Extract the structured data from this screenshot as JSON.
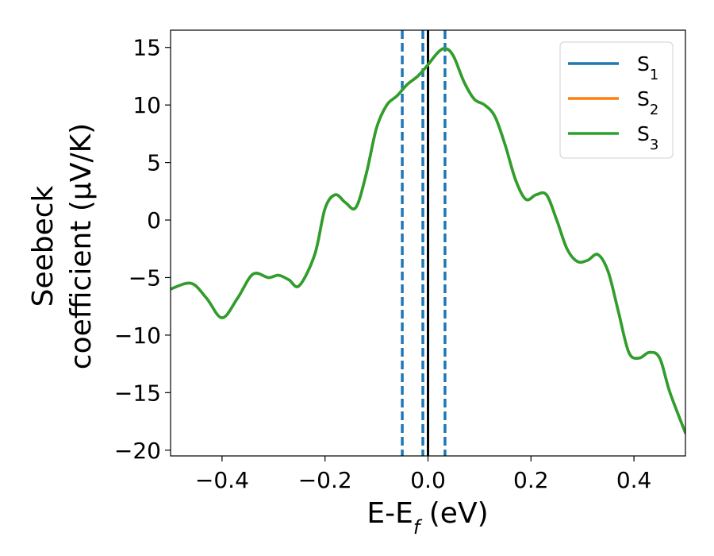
{
  "chart_data": {
    "type": "line",
    "xlabel": "E-E",
    "xlabel_sub": "f",
    "xlabel_unit": " (eV)",
    "ylabel_line1": "Seebeck",
    "ylabel_line2": "coefficient  (μV/K)",
    "xlim": [
      -0.5,
      0.5
    ],
    "ylim": [
      -20.5,
      16.5
    ],
    "x_ticks": [
      -0.4,
      -0.2,
      0.0,
      0.2,
      0.4
    ],
    "x_tick_labels": [
      "−0.4",
      "−0.2",
      "0.0",
      "0.2",
      "0.4"
    ],
    "y_ticks": [
      15,
      10,
      5,
      0,
      -5,
      -10,
      -15,
      -20
    ],
    "y_tick_labels": [
      "15",
      "10",
      "5",
      "0",
      "−5",
      "−10",
      "−15",
      "−20"
    ],
    "grid": false,
    "legend_position": "top-right",
    "series": [
      {
        "name": "S",
        "name_sub": "1",
        "color": "#1f77b4",
        "x": [
          -0.5,
          -0.46,
          -0.43,
          -0.4,
          -0.37,
          -0.34,
          -0.31,
          -0.29,
          -0.27,
          -0.25,
          -0.22,
          -0.2,
          -0.18,
          -0.16,
          -0.14,
          -0.12,
          -0.1,
          -0.08,
          -0.06,
          -0.04,
          -0.02,
          0.0,
          0.02,
          0.035,
          0.05,
          0.07,
          0.09,
          0.11,
          0.13,
          0.15,
          0.17,
          0.19,
          0.21,
          0.23,
          0.25,
          0.27,
          0.29,
          0.31,
          0.33,
          0.35,
          0.37,
          0.39,
          0.41,
          0.43,
          0.45,
          0.47,
          0.5
        ],
        "y": [
          -6.0,
          -5.5,
          -6.8,
          -8.5,
          -6.8,
          -4.7,
          -5.0,
          -4.8,
          -5.2,
          -5.7,
          -3.0,
          1.0,
          2.2,
          1.5,
          1.1,
          4.0,
          8.0,
          10.0,
          10.8,
          11.8,
          12.5,
          13.5,
          14.6,
          14.9,
          14.2,
          12.0,
          10.5,
          10.0,
          9.0,
          6.5,
          3.5,
          1.8,
          2.2,
          2.2,
          0.0,
          -2.5,
          -3.6,
          -3.5,
          -3.0,
          -4.5,
          -8.0,
          -11.5,
          -12.0,
          -11.5,
          -12.0,
          -15.0,
          -18.5
        ]
      },
      {
        "name": "S",
        "name_sub": "2",
        "color": "#ff7f0e",
        "x": [
          -0.5,
          -0.46,
          -0.43,
          -0.4,
          -0.37,
          -0.34,
          -0.31,
          -0.29,
          -0.27,
          -0.25,
          -0.22,
          -0.2,
          -0.18,
          -0.16,
          -0.14,
          -0.12,
          -0.1,
          -0.08,
          -0.06,
          -0.04,
          -0.02,
          0.0,
          0.02,
          0.035,
          0.05,
          0.07,
          0.09,
          0.11,
          0.13,
          0.15,
          0.17,
          0.19,
          0.21,
          0.23,
          0.25,
          0.27,
          0.29,
          0.31,
          0.33,
          0.35,
          0.37,
          0.39,
          0.41,
          0.43,
          0.45,
          0.47,
          0.5
        ],
        "y": [
          -6.0,
          -5.5,
          -6.8,
          -8.5,
          -6.8,
          -4.7,
          -5.0,
          -4.8,
          -5.2,
          -5.7,
          -3.0,
          1.0,
          2.2,
          1.5,
          1.1,
          4.0,
          8.0,
          10.0,
          10.8,
          11.8,
          12.5,
          13.5,
          14.6,
          14.9,
          14.2,
          12.0,
          10.5,
          10.0,
          9.0,
          6.5,
          3.5,
          1.8,
          2.2,
          2.2,
          0.0,
          -2.5,
          -3.6,
          -3.5,
          -3.0,
          -4.5,
          -8.0,
          -11.5,
          -12.0,
          -11.5,
          -12.0,
          -15.0,
          -18.5
        ]
      },
      {
        "name": "S",
        "name_sub": "3",
        "color": "#2ca02c",
        "x": [
          -0.5,
          -0.46,
          -0.43,
          -0.4,
          -0.37,
          -0.34,
          -0.31,
          -0.29,
          -0.27,
          -0.25,
          -0.22,
          -0.2,
          -0.18,
          -0.16,
          -0.14,
          -0.12,
          -0.1,
          -0.08,
          -0.06,
          -0.04,
          -0.02,
          0.0,
          0.02,
          0.035,
          0.05,
          0.07,
          0.09,
          0.11,
          0.13,
          0.15,
          0.17,
          0.19,
          0.21,
          0.23,
          0.25,
          0.27,
          0.29,
          0.31,
          0.33,
          0.35,
          0.37,
          0.39,
          0.41,
          0.43,
          0.45,
          0.47,
          0.5
        ],
        "y": [
          -6.0,
          -5.5,
          -6.8,
          -8.5,
          -6.8,
          -4.7,
          -5.0,
          -4.8,
          -5.2,
          -5.7,
          -3.0,
          1.0,
          2.2,
          1.5,
          1.1,
          4.0,
          8.0,
          10.0,
          10.8,
          11.8,
          12.5,
          13.5,
          14.6,
          14.9,
          14.2,
          12.0,
          10.5,
          10.0,
          9.0,
          6.5,
          3.5,
          1.8,
          2.2,
          2.2,
          0.0,
          -2.5,
          -3.6,
          -3.5,
          -3.0,
          -4.5,
          -8.0,
          -11.5,
          -12.0,
          -11.5,
          -12.0,
          -15.0,
          -18.5
        ]
      }
    ],
    "vertical_lines": [
      {
        "x": -0.05,
        "style": "dashed",
        "color": "#1f77b4"
      },
      {
        "x": -0.01,
        "style": "dashed",
        "color": "#1f77b4"
      },
      {
        "x": 0.0,
        "style": "solid",
        "color": "#000000"
      },
      {
        "x": 0.033,
        "style": "dashed",
        "color": "#1f77b4"
      }
    ]
  }
}
